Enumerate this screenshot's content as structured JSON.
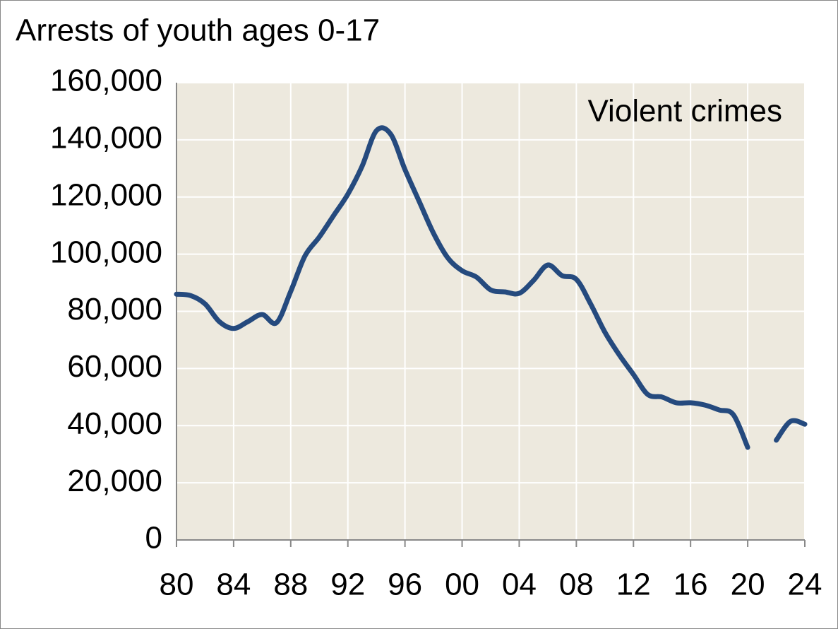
{
  "chart_data": {
    "type": "line",
    "title": "Arrests of youth ages 0-17",
    "annotation": "Violent crimes",
    "x": [
      1980,
      1981,
      1982,
      1983,
      1984,
      1985,
      1986,
      1987,
      1988,
      1989,
      1990,
      1991,
      1992,
      1993,
      1994,
      1995,
      1996,
      1997,
      1998,
      1999,
      2000,
      2001,
      2002,
      2003,
      2004,
      2005,
      2006,
      2007,
      2008,
      2009,
      2010,
      2011,
      2012,
      2013,
      2014,
      2015,
      2016,
      2017,
      2018,
      2019,
      2020,
      2021,
      2022,
      2023,
      2024
    ],
    "series": [
      {
        "name": "Violent crimes",
        "color": "#254a7e",
        "values": [
          86000,
          85500,
          82600,
          76400,
          74000,
          76400,
          78900,
          76000,
          87000,
          99400,
          106000,
          113500,
          121000,
          130800,
          143200,
          142000,
          129600,
          118400,
          107300,
          98700,
          94200,
          92000,
          87500,
          86800,
          86300,
          90800,
          96200,
          92500,
          91200,
          82600,
          72700,
          64800,
          57900,
          50900,
          50000,
          48000,
          48000,
          47200,
          45500,
          43800,
          32400,
          null,
          34900,
          41500,
          40500
        ]
      }
    ],
    "xlim": [
      1980,
      2024
    ],
    "xticks": [
      {
        "value": 1980,
        "label": "80"
      },
      {
        "value": 1984,
        "label": "84"
      },
      {
        "value": 1988,
        "label": "88"
      },
      {
        "value": 1992,
        "label": "92"
      },
      {
        "value": 1996,
        "label": "96"
      },
      {
        "value": 2000,
        "label": "00"
      },
      {
        "value": 2004,
        "label": "04"
      },
      {
        "value": 2008,
        "label": "08"
      },
      {
        "value": 2012,
        "label": "12"
      },
      {
        "value": 2016,
        "label": "16"
      },
      {
        "value": 2020,
        "label": "20"
      },
      {
        "value": 2024,
        "label": "24"
      }
    ],
    "ylim": [
      0,
      160000
    ],
    "yticks": [
      0,
      {
        "value": 20000,
        "label": "20,000"
      },
      {
        "value": 40000,
        "label": "40,000"
      },
      {
        "value": 60000,
        "label": "60,000"
      },
      {
        "value": 80000,
        "label": "80,000"
      },
      {
        "value": 100000,
        "label": "100,000"
      },
      {
        "value": 120000,
        "label": "120,000"
      },
      {
        "value": 140000,
        "label": "140,000"
      },
      {
        "value": 160000,
        "label": "160,000"
      }
    ],
    "grid": true
  }
}
